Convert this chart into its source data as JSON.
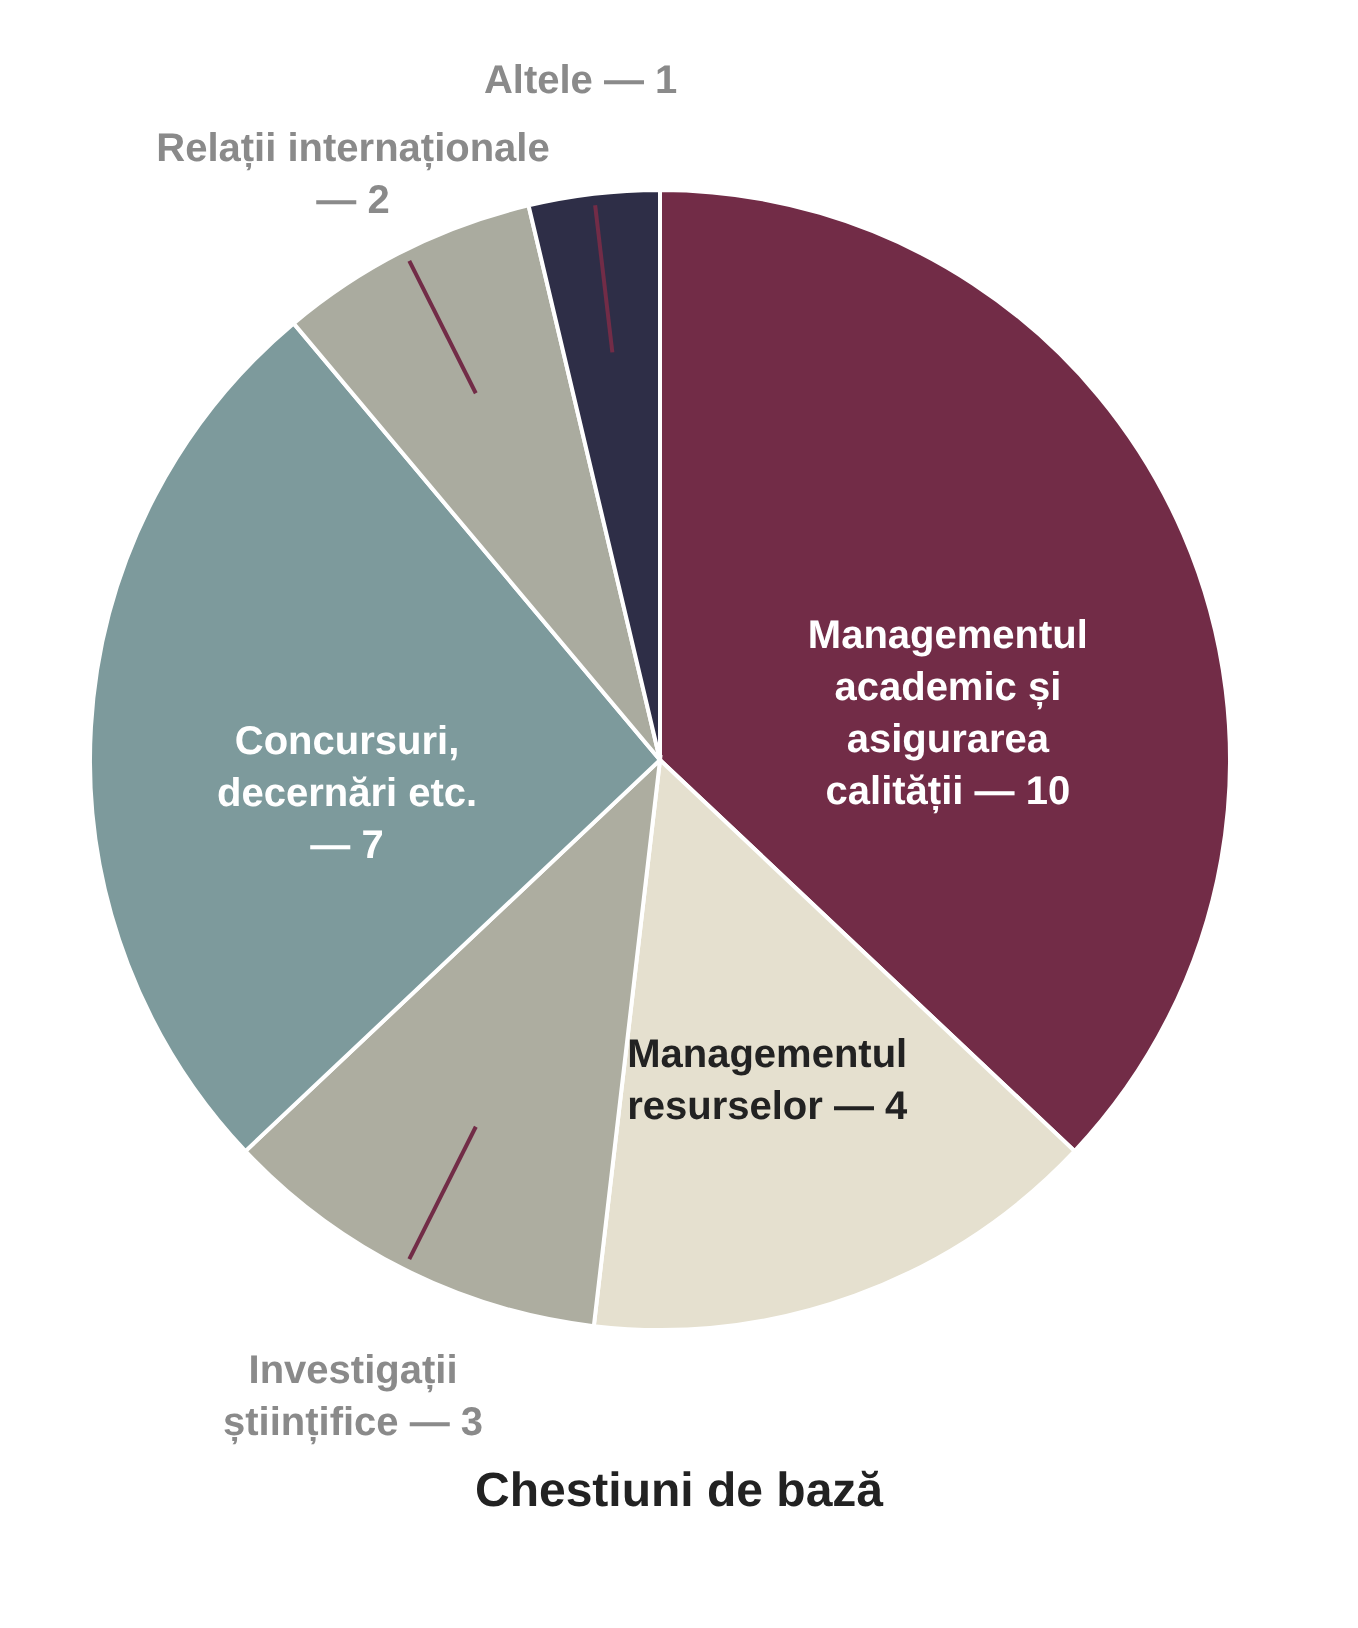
{
  "chart_data": {
    "type": "pie",
    "title": "Chestiuni de bază",
    "categories": [
      "Managementul academic și asigurarea calității",
      "Managementul resurselor",
      "Investigații științifice",
      "Concursuri, decernări etc.",
      "Relații internaționale",
      "Altele"
    ],
    "values": [
      10,
      4,
      3,
      7,
      2,
      1
    ],
    "colors": [
      "#722c47",
      "#e5e0cf",
      "#adada0",
      "#7d9a9c",
      "#aaab9f",
      "#2e2e47"
    ],
    "value_labels": [
      "— 10",
      "— 4",
      "— 3",
      "— 7",
      "— 2",
      "— 1"
    ]
  }
}
